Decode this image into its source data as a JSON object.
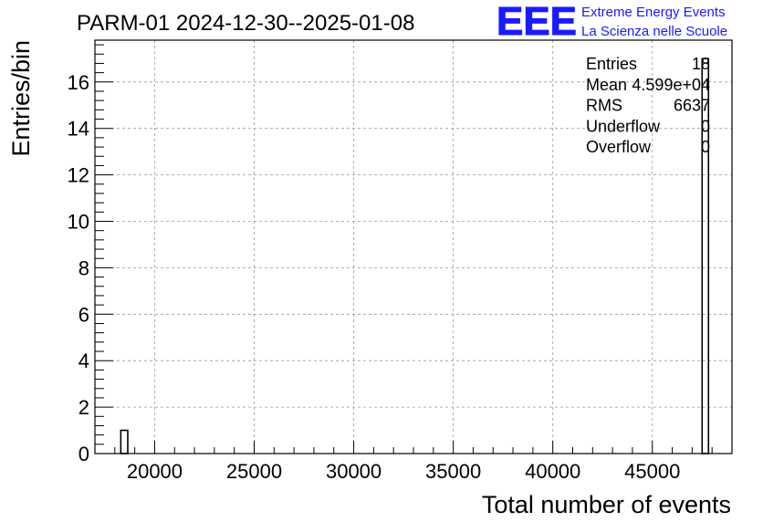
{
  "chart_data": {
    "type": "bar",
    "title": "PARM-01 2024-12-30--2025-01-08",
    "xlabel": "Total number of events",
    "ylabel": "Entries/bin",
    "xlim": [
      17000,
      49000
    ],
    "ylim": [
      0,
      17.8
    ],
    "grid": true,
    "x_ticks": [
      20000,
      25000,
      30000,
      35000,
      40000,
      45000
    ],
    "x_tick_labels": [
      "20000",
      "25000",
      "30000",
      "35000",
      "40000",
      "45000"
    ],
    "y_ticks": [
      0,
      2,
      4,
      6,
      8,
      10,
      12,
      14,
      16
    ],
    "y_tick_labels": [
      "0",
      "2",
      "4",
      "6",
      "8",
      "10",
      "12",
      "14",
      "16"
    ],
    "bins": [
      {
        "x_low": 18300,
        "x_high": 18650,
        "count": 1
      },
      {
        "x_low": 47500,
        "x_high": 47820,
        "count": 17
      }
    ],
    "stats_box": {
      "placement": "top-right",
      "rows": [
        {
          "label": "Entries",
          "value": "18"
        },
        {
          "label": "Mean",
          "value": "4.599e+04"
        },
        {
          "label": "RMS",
          "value": "6637"
        },
        {
          "label": "Underflow",
          "value": "0"
        },
        {
          "label": "Overflow",
          "value": "0"
        }
      ]
    },
    "colors": {
      "bar_outline": "#000000",
      "grid": "#9a9a9a",
      "logo": "#1a1aff"
    }
  },
  "logo": {
    "mark": "EEE",
    "line1": "Extreme Energy Events",
    "line2": "La Scienza nelle Scuole"
  }
}
